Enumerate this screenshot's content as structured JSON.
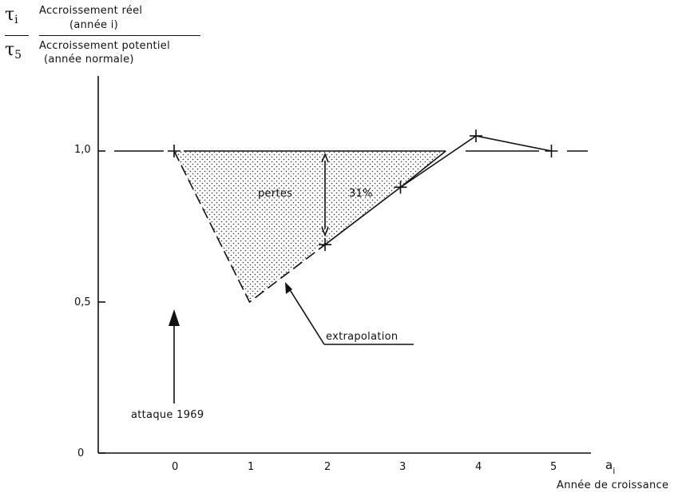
{
  "header": {
    "tau_i": "τ",
    "tau_i_sub": "i",
    "tau_5": "τ",
    "tau_5_sub": "5",
    "numerator_line1": "Accroissement réel",
    "numerator_line2": "(année i)",
    "denominator_line1": "Accroissement potentiel",
    "denominator_line2": "(année normale)"
  },
  "annotations": {
    "losses": "pertes",
    "loss_pct": "31%",
    "extrapolation": "extrapolation",
    "attack": "attaque  1969"
  },
  "chart_data": {
    "type": "line",
    "title": "",
    "ylabel": "τi / τ5 = Accroissement réel (année i) / Accroissement potentiel (année normale)",
    "xlabel": "Année de croissance",
    "x_symbol": "a",
    "x_symbol_sub": "i",
    "xlim": [
      -1,
      5.5
    ],
    "ylim": [
      0,
      1.25
    ],
    "x_ticks": [
      0,
      1,
      2,
      3,
      4,
      5
    ],
    "x_tick_labels": [
      "0",
      "1",
      "2",
      "3",
      "4",
      "5"
    ],
    "y_ticks": [
      0,
      0.5,
      1.0
    ],
    "y_tick_labels": [
      "0",
      "0,5",
      "1,0"
    ],
    "reference_level": 1.0,
    "series": [
      {
        "style": "dashed",
        "points": [
          [
            0,
            1.0
          ],
          [
            1,
            0.5
          ],
          [
            2,
            0.69
          ]
        ]
      },
      {
        "style": "solid",
        "points": [
          [
            2,
            0.69
          ],
          [
            3,
            0.88
          ],
          [
            4,
            1.05
          ],
          [
            5,
            1.0
          ]
        ]
      }
    ],
    "markers": [
      [
        0,
        1.0
      ],
      [
        2,
        0.69
      ],
      [
        3,
        0.88
      ],
      [
        4,
        1.05
      ],
      [
        5,
        1.0
      ]
    ],
    "shaded_region": [
      [
        0,
        1.0
      ],
      [
        3.6,
        1.0
      ],
      [
        1,
        0.5
      ]
    ],
    "loss_arrow": {
      "x": 2,
      "from": 1.0,
      "to": 0.69,
      "value_pct": 31
    },
    "attack_year": {
      "x": 0,
      "label": "attaque 1969"
    },
    "grid": false,
    "legend": "none"
  }
}
